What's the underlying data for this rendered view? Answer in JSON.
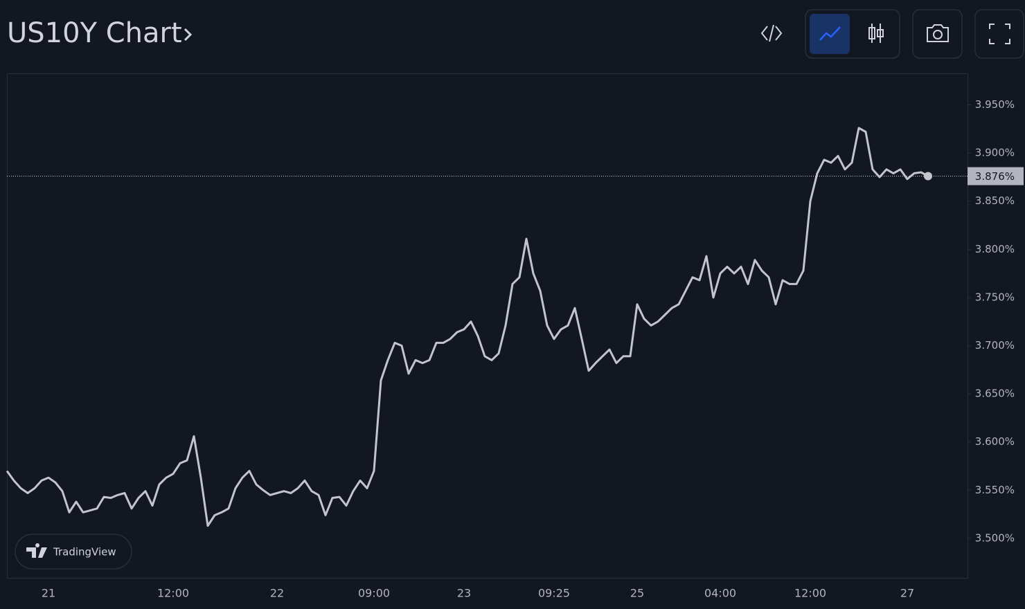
{
  "chart_data": {
    "type": "line",
    "title": "US10Y Chart",
    "brand": "TradingView",
    "color": "#c3c5cc",
    "categories": [
      null,
      null,
      null,
      null,
      null,
      null,
      "21",
      null,
      null,
      null,
      null,
      null,
      null,
      null,
      null,
      null,
      null,
      null,
      null,
      null,
      null,
      null,
      null,
      null,
      "12:00",
      null,
      null,
      null,
      null,
      null,
      null,
      null,
      null,
      null,
      null,
      null,
      null,
      null,
      null,
      "22",
      null,
      null,
      null,
      null,
      null,
      null,
      null,
      null,
      null,
      null,
      null,
      null,
      null,
      "09:00",
      null,
      null,
      null,
      null,
      null,
      null,
      null,
      null,
      null,
      null,
      null,
      null,
      "23",
      null,
      null,
      null,
      null,
      null,
      null,
      null,
      null,
      null,
      null,
      null,
      null,
      "09:25",
      null,
      null,
      null,
      null,
      null,
      null,
      null,
      null,
      null,
      null,
      null,
      "25",
      null,
      null,
      null,
      null,
      null,
      null,
      null,
      null,
      null,
      null,
      null,
      "04:00",
      null,
      null,
      null,
      null,
      null,
      null,
      null,
      null,
      null,
      null,
      null,
      null,
      "12:00",
      null,
      null,
      null,
      null,
      null,
      null,
      null,
      null,
      null,
      null,
      null,
      null,
      null,
      "27",
      null,
      null,
      null
    ],
    "values": [
      3.57,
      3.56,
      3.552,
      3.547,
      3.552,
      3.56,
      3.563,
      3.558,
      3.549,
      3.527,
      3.538,
      3.527,
      3.529,
      3.531,
      3.543,
      3.542,
      3.545,
      3.547,
      3.531,
      3.542,
      3.549,
      3.534,
      3.556,
      3.563,
      3.567,
      3.578,
      3.581,
      3.606,
      3.563,
      3.513,
      3.524,
      3.527,
      3.531,
      3.552,
      3.563,
      3.57,
      3.556,
      3.55,
      3.545,
      3.547,
      3.549,
      3.547,
      3.552,
      3.56,
      3.549,
      3.545,
      3.524,
      3.542,
      3.543,
      3.534,
      3.549,
      3.56,
      3.552,
      3.57,
      3.664,
      3.685,
      3.703,
      3.7,
      3.671,
      3.685,
      3.682,
      3.685,
      3.703,
      3.703,
      3.707,
      3.714,
      3.717,
      3.725,
      3.71,
      3.689,
      3.685,
      3.692,
      3.721,
      3.764,
      3.771,
      3.811,
      3.775,
      3.757,
      3.721,
      3.707,
      3.717,
      3.721,
      3.739,
      3.707,
      3.674,
      3.682,
      3.689,
      3.696,
      3.682,
      3.689,
      3.689,
      3.743,
      3.728,
      3.721,
      3.725,
      3.732,
      3.739,
      3.743,
      3.757,
      3.771,
      3.768,
      3.793,
      3.75,
      3.775,
      3.782,
      3.775,
      3.782,
      3.764,
      3.789,
      3.778,
      3.771,
      3.743,
      3.768,
      3.764,
      3.764,
      3.778,
      3.85,
      3.879,
      3.893,
      3.89,
      3.897,
      3.883,
      3.89,
      3.926,
      3.922,
      3.883,
      3.875,
      3.883,
      3.879,
      3.883,
      3.873,
      3.879,
      3.88,
      3.876
    ],
    "ylim": [
      3.459,
      3.982
    ],
    "yticks": [
      {
        "value": 3.5,
        "label": "3.500%"
      },
      {
        "value": 3.55,
        "label": "3.550%"
      },
      {
        "value": 3.6,
        "label": "3.600%"
      },
      {
        "value": 3.65,
        "label": "3.650%"
      },
      {
        "value": 3.7,
        "label": "3.700%"
      },
      {
        "value": 3.75,
        "label": "3.750%"
      },
      {
        "value": 3.8,
        "label": "3.800%"
      },
      {
        "value": 3.85,
        "label": "3.850%"
      },
      {
        "value": 3.9,
        "label": "3.900%"
      },
      {
        "value": 3.95,
        "label": "3.950%"
      }
    ],
    "price_line": {
      "value": 3.876,
      "label": "3.876%"
    },
    "grid": false
  }
}
